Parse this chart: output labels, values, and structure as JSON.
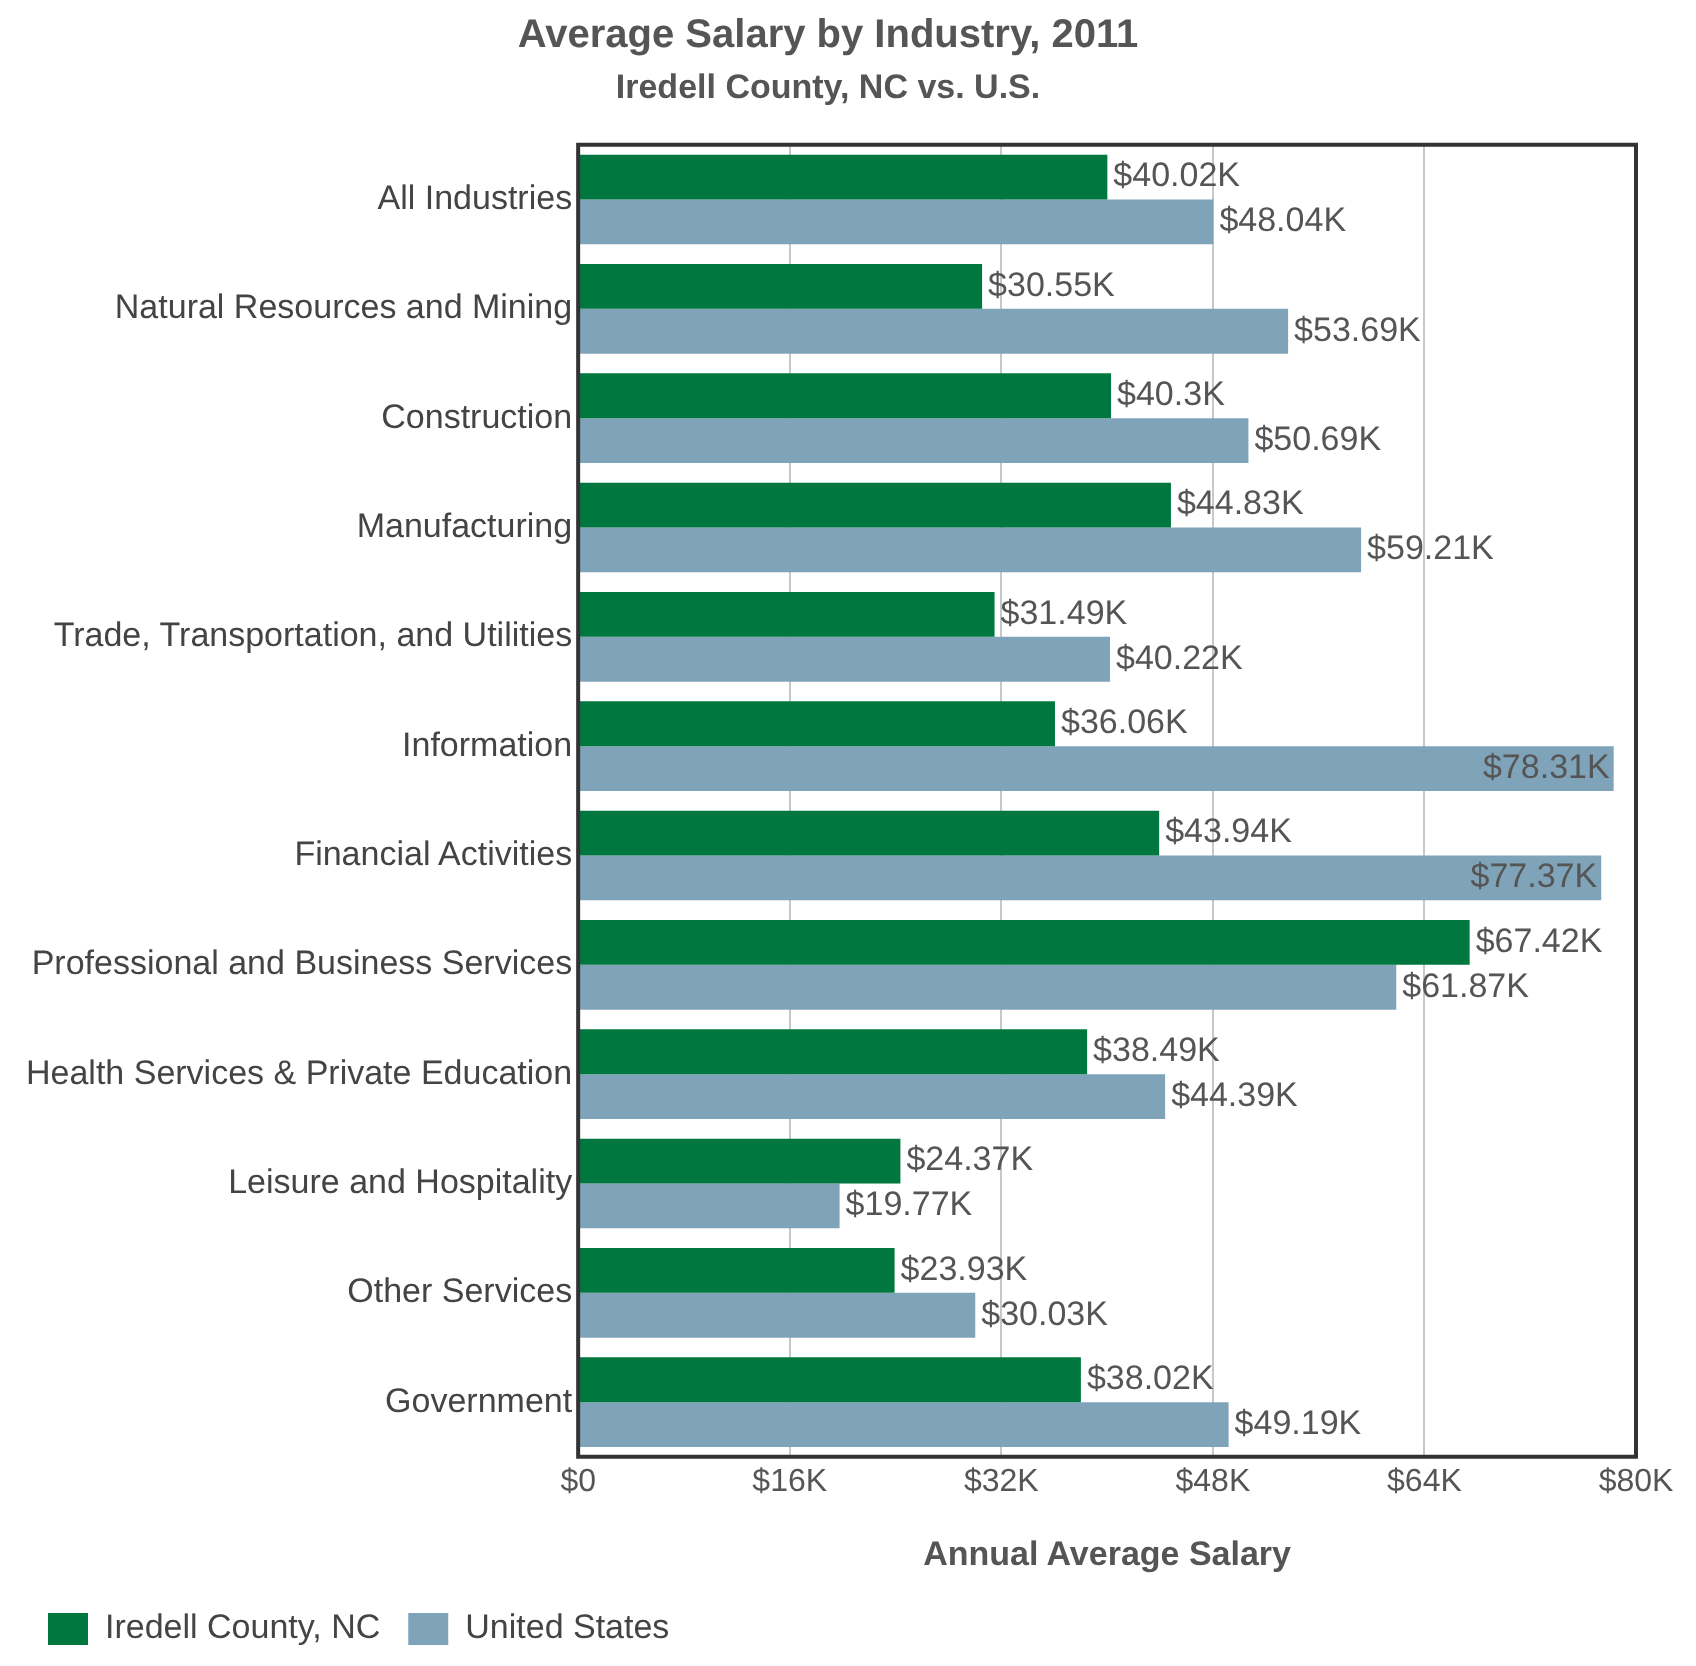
{
  "chart_data": {
    "type": "bar",
    "orientation": "horizontal",
    "title": "Average Salary by Industry, 2011",
    "subtitle": "Iredell County, NC vs. U.S.",
    "xlabel": "Annual Average Salary",
    "categories": [
      "All Industries",
      "Natural Resources and Mining",
      "Construction",
      "Manufacturing",
      "Trade, Transportation, and Utilities",
      "Information",
      "Financial Activities",
      "Professional and Business Services",
      "Health Services & Private Education",
      "Leisure and Hospitality",
      "Other Services",
      "Government"
    ],
    "series": [
      {
        "name": "Iredell County, NC",
        "color": "#00773f",
        "values": [
          40.02,
          30.55,
          40.3,
          44.83,
          31.49,
          36.06,
          43.94,
          67.42,
          38.49,
          24.37,
          23.93,
          38.02
        ],
        "value_labels": [
          "$40.02K",
          "$30.55K",
          "$40.3K",
          "$44.83K",
          "$31.49K",
          "$36.06K",
          "$43.94K",
          "$67.42K",
          "$38.49K",
          "$24.37K",
          "$23.93K",
          "$38.02K"
        ]
      },
      {
        "name": "United States",
        "color": "#7fa3b8",
        "values": [
          48.04,
          53.69,
          50.69,
          59.21,
          40.22,
          78.31,
          77.37,
          61.87,
          44.39,
          19.77,
          30.03,
          49.19
        ],
        "value_labels": [
          "$48.04K",
          "$53.69K",
          "$50.69K",
          "$59.21K",
          "$40.22K",
          "$78.31K",
          "$77.37K",
          "$61.87K",
          "$44.39K",
          "$19.77K",
          "$30.03K",
          "$49.19K"
        ]
      }
    ],
    "xlim": [
      0,
      80
    ],
    "xticks": [
      {
        "value": 0,
        "label": "$0"
      },
      {
        "value": 16,
        "label": "$16K"
      },
      {
        "value": 32,
        "label": "$32K"
      },
      {
        "value": 48,
        "label": "$48K"
      },
      {
        "value": 64,
        "label": "$64K"
      },
      {
        "value": 80,
        "label": "$80K"
      }
    ],
    "grid": "x",
    "legend": "bottom"
  }
}
